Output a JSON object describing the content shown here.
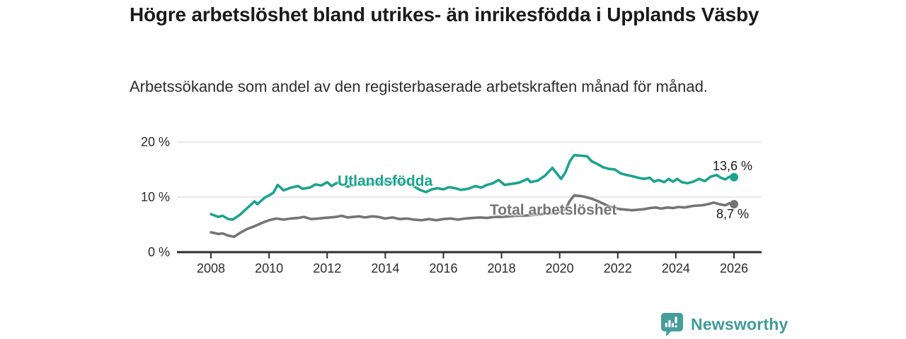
{
  "title": "Högre arbetslöshet bland utrikes- än inrikesfödda i Upplands Väsby",
  "subtitle": "Arbetssökande som andel av den registerbaserade arbetskraften månad för månad.",
  "branding": {
    "logo_text": "Newsworthy",
    "logo_color": "#479d9b",
    "wordmark_color": "#3f9b99"
  },
  "chart_data": {
    "type": "line",
    "title": "Högre arbetslöshet bland utrikes- än inrikesfödda i Upplands Väsby",
    "subtitle": "Arbetssökande som andel av den registerbaserade arbetskraften månad för månad.",
    "xlabel": "",
    "ylabel": "",
    "grid": true,
    "legend": "inline-labels",
    "x_axis": {
      "ticks": [
        2008,
        2010,
        2012,
        2014,
        2016,
        2018,
        2020,
        2022,
        2024,
        2026
      ],
      "range": [
        2006.8,
        2026.9
      ]
    },
    "y_axis": {
      "ticks": [
        0,
        10,
        20
      ],
      "tick_labels": [
        "0 %",
        "10 %",
        "20 %"
      ],
      "range": [
        0,
        21.5
      ]
    },
    "series": [
      {
        "name": "Utlandsfödda",
        "color": "#1ba390",
        "end_label": "13,6 %",
        "end_value": 13.6,
        "x": [
          2008.0,
          2008.25,
          2008.4,
          2008.6,
          2008.75,
          2009.0,
          2009.25,
          2009.5,
          2009.6,
          2009.85,
          2010.0,
          2010.15,
          2010.3,
          2010.5,
          2010.75,
          2011.0,
          2011.15,
          2011.4,
          2011.6,
          2011.8,
          2012.0,
          2012.15,
          2012.35,
          2012.5,
          2012.7,
          2012.9,
          2013.1,
          2013.3,
          2013.5,
          2013.75,
          2013.9,
          2014.1,
          2014.35,
          2014.5,
          2014.75,
          2015.0,
          2015.2,
          2015.4,
          2015.6,
          2015.8,
          2016.0,
          2016.2,
          2016.4,
          2016.6,
          2016.85,
          2017.1,
          2017.3,
          2017.5,
          2017.7,
          2017.9,
          2018.1,
          2018.35,
          2018.6,
          2018.9,
          2019.0,
          2019.25,
          2019.5,
          2019.75,
          2019.9,
          2020.05,
          2020.2,
          2020.35,
          2020.5,
          2020.75,
          2020.95,
          2021.1,
          2021.3,
          2021.5,
          2021.7,
          2021.9,
          2022.1,
          2022.3,
          2022.5,
          2022.7,
          2022.9,
          2023.1,
          2023.25,
          2023.4,
          2023.6,
          2023.75,
          2023.9,
          2024.05,
          2024.2,
          2024.4,
          2024.6,
          2024.8,
          2025.0,
          2025.2,
          2025.4,
          2025.55,
          2025.7,
          2025.85,
          2026.0
        ],
        "values": [
          6.9,
          6.4,
          6.6,
          6.0,
          5.9,
          6.8,
          8.0,
          9.2,
          8.7,
          9.9,
          10.3,
          10.8,
          12.2,
          11.2,
          11.7,
          12.0,
          11.5,
          11.7,
          12.3,
          12.1,
          12.7,
          12.0,
          12.6,
          12.3,
          11.9,
          12.1,
          12.4,
          12.2,
          12.4,
          12.6,
          12.8,
          12.5,
          12.9,
          12.5,
          12.8,
          11.9,
          11.3,
          10.9,
          11.4,
          11.6,
          11.4,
          11.8,
          11.6,
          11.3,
          11.5,
          12.0,
          11.7,
          12.2,
          12.5,
          13.1,
          12.2,
          12.4,
          12.6,
          13.3,
          12.7,
          13.0,
          13.9,
          15.3,
          14.3,
          13.3,
          14.5,
          16.5,
          17.6,
          17.5,
          17.4,
          16.5,
          16.0,
          15.4,
          15.1,
          15.0,
          14.3,
          14.0,
          13.8,
          13.5,
          13.3,
          13.5,
          12.8,
          13.1,
          12.7,
          13.3,
          12.8,
          13.3,
          12.7,
          12.5,
          12.8,
          13.3,
          12.9,
          13.7,
          14.0,
          13.5,
          13.2,
          13.7,
          13.6
        ]
      },
      {
        "name": "Total arbetslöshet",
        "color": "#747474",
        "end_label": "8,7 %",
        "end_value": 8.7,
        "x": [
          2008.0,
          2008.25,
          2008.4,
          2008.6,
          2008.8,
          2009.0,
          2009.25,
          2009.5,
          2009.75,
          2010.0,
          2010.25,
          2010.5,
          2010.75,
          2011.0,
          2011.2,
          2011.45,
          2011.7,
          2011.9,
          2012.1,
          2012.3,
          2012.5,
          2012.7,
          2012.9,
          2013.1,
          2013.3,
          2013.55,
          2013.75,
          2014.0,
          2014.25,
          2014.5,
          2014.75,
          2015.0,
          2015.25,
          2015.5,
          2015.75,
          2016.0,
          2016.25,
          2016.5,
          2016.75,
          2017.0,
          2017.25,
          2017.5,
          2017.75,
          2018.0,
          2018.25,
          2018.5,
          2018.75,
          2019.0,
          2019.25,
          2019.5,
          2019.75,
          2020.0,
          2020.2,
          2020.35,
          2020.5,
          2020.7,
          2020.9,
          2021.1,
          2021.3,
          2021.5,
          2021.7,
          2021.9,
          2022.1,
          2022.3,
          2022.5,
          2022.7,
          2022.9,
          2023.1,
          2023.3,
          2023.5,
          2023.7,
          2023.9,
          2024.1,
          2024.3,
          2024.6,
          2024.9,
          2025.1,
          2025.3,
          2025.5,
          2025.7,
          2025.85,
          2026.0
        ],
        "values": [
          3.6,
          3.3,
          3.4,
          3.0,
          2.8,
          3.5,
          4.2,
          4.7,
          5.3,
          5.8,
          6.1,
          5.9,
          6.1,
          6.2,
          6.4,
          6.0,
          6.1,
          6.2,
          6.3,
          6.4,
          6.6,
          6.3,
          6.4,
          6.5,
          6.3,
          6.5,
          6.4,
          6.1,
          6.3,
          6.0,
          6.1,
          5.9,
          5.8,
          6.0,
          5.8,
          6.0,
          6.1,
          5.9,
          6.1,
          6.2,
          6.3,
          6.2,
          6.4,
          6.4,
          6.5,
          6.6,
          6.6,
          6.7,
          6.8,
          7.0,
          7.1,
          7.3,
          7.8,
          9.3,
          10.3,
          10.2,
          10.0,
          9.7,
          9.3,
          8.8,
          8.3,
          8.0,
          7.8,
          7.7,
          7.6,
          7.7,
          7.8,
          8.0,
          8.1,
          7.9,
          8.1,
          8.0,
          8.2,
          8.1,
          8.4,
          8.5,
          8.7,
          9.0,
          8.7,
          8.5,
          8.9,
          8.7
        ]
      }
    ],
    "style": {
      "gridline_color": "#d9d9d9",
      "axis_color": "#2e2e2e",
      "tick_label_color": "#2b2b2b"
    }
  }
}
